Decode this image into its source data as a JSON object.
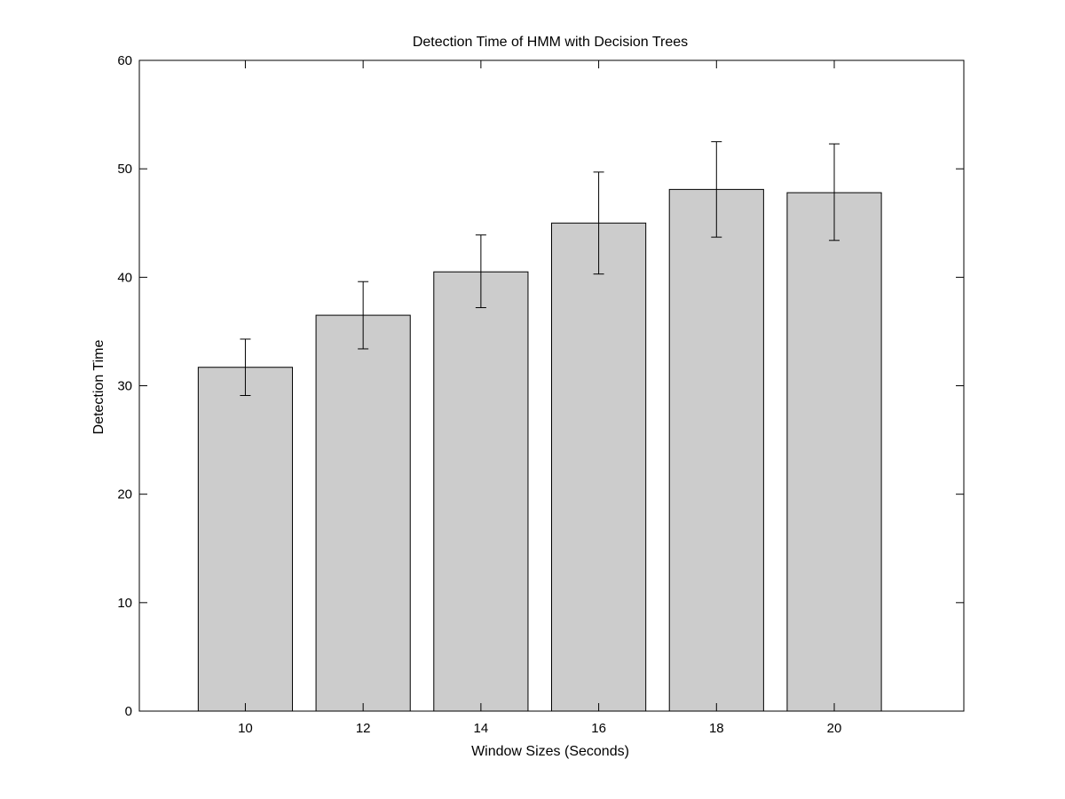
{
  "chart_data": {
    "type": "bar",
    "title": "Detection Time of HMM with Decision Trees",
    "xlabel": "Window Sizes (Seconds)",
    "ylabel": "Detection Time",
    "categories": [
      "10",
      "12",
      "14",
      "16",
      "18",
      "20"
    ],
    "values": [
      31.7,
      36.5,
      40.5,
      45.0,
      48.1,
      47.8
    ],
    "error_low": [
      29.1,
      33.4,
      37.2,
      40.3,
      43.7,
      43.4
    ],
    "error_high": [
      34.3,
      39.6,
      43.9,
      49.7,
      52.5,
      52.3
    ],
    "xlim": [
      8.2,
      22.2
    ],
    "ylim": [
      0,
      60
    ],
    "yticks": [
      "0",
      "10",
      "20",
      "30",
      "40",
      "50",
      "60"
    ],
    "grid": false,
    "bar_color": "#cccccc",
    "edge_color": "#000000"
  }
}
